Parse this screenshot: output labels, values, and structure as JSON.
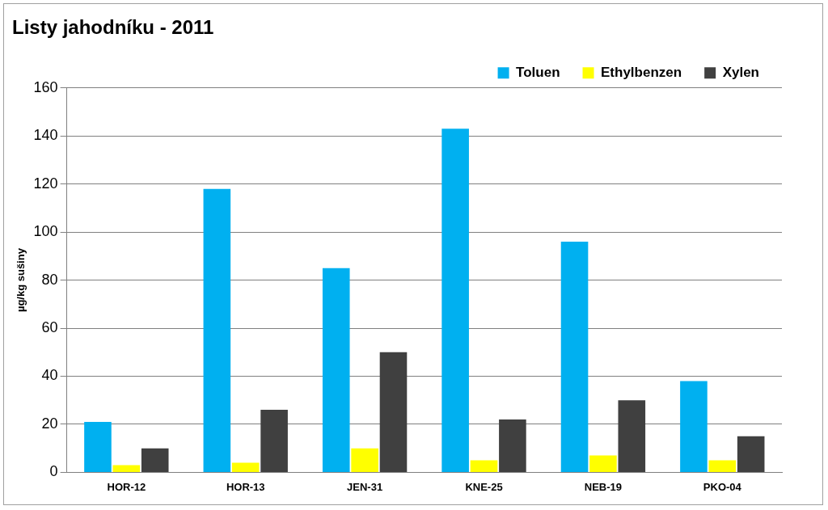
{
  "chart_data": {
    "type": "bar",
    "title": "Listy jahodníku - 2011",
    "y_label": "µg/kg sušiny",
    "categories": [
      "HOR-12",
      "HOR-13",
      "JEN-31",
      "KNE-25",
      "NEB-19",
      "PKO-04"
    ],
    "series": [
      {
        "name": "Toluen",
        "color": "#00b0f0",
        "values": [
          21,
          118,
          85,
          143,
          96,
          38
        ]
      },
      {
        "name": "Ethylbenzen",
        "color": "#ffff00",
        "values": [
          3,
          4,
          10,
          5,
          7,
          5
        ]
      },
      {
        "name": "Xylen",
        "color": "#404040",
        "values": [
          10,
          26,
          50,
          22,
          30,
          15
        ]
      }
    ],
    "ylim": [
      0,
      160
    ],
    "yticks": [
      0,
      20,
      40,
      60,
      80,
      100,
      120,
      140,
      160
    ],
    "grid": true,
    "legend": "top-right"
  }
}
